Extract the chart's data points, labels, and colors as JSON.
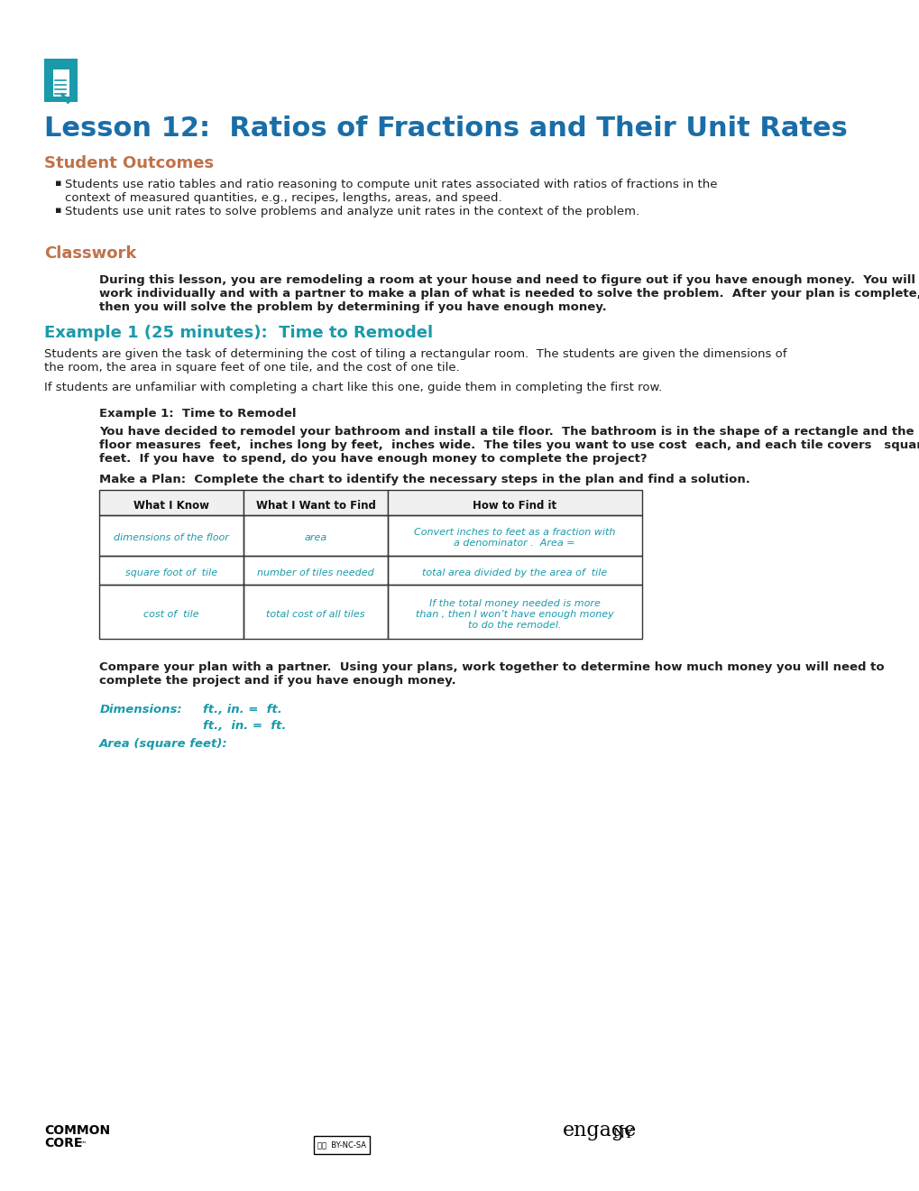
{
  "title": "Lesson 12:  Ratios of Fractions and Their Unit Rates",
  "title_color": "#1a6ea8",
  "title_fontsize": 22,
  "section1_heading": "Student Outcomes",
  "section1_color": "#c0724a",
  "section1_fontsize": 13,
  "bullet1": "Students use ratio tables and ratio reasoning to compute unit rates associated with ratios of fractions in the\ncontext of measured quantities, e.g., recipes, lengths, areas, and speed.",
  "bullet2": "Students use unit rates to solve problems and analyze unit rates in the context of the problem.",
  "section2_heading": "Classwork",
  "section2_color": "#c0724a",
  "section2_fontsize": 13,
  "classwork_para": "During this lesson, you are remodeling a room at your house and need to figure out if you have enough money.  You will\nwork individually and with a partner to make a plan of what is needed to solve the problem.  After your plan is complete,\nthen you will solve the problem by determining if you have enough money.",
  "section3_heading": "Example 1 (25 minutes):  Time to Remodel",
  "section3_color": "#1a9aaa",
  "section3_fontsize": 13,
  "example_para1": "Students are given the task of determining the cost of tiling a rectangular room.  The students are given the dimensions of\nthe room, the area in square feet of one tile, and the cost of one tile.",
  "example_para2": "If students are unfamiliar with completing a chart like this one, guide them in completing the first row.",
  "example1_label": "Example 1:  Time to Remodel",
  "problem_text": "You have decided to remodel your bathroom and install a tile floor.  The bathroom is in the shape of a rectangle and the\nfloor measures  feet,  inches long by feet,  inches wide.  The tiles you want to use cost  each, and each tile covers   square\nfeet.  If you have  to spend, do you have enough money to complete the project?",
  "make_plan_text": "Make a Plan:  Complete the chart to identify the necessary steps in the plan and find a solution.",
  "table_headers": [
    "What I Know",
    "What I Want to Find",
    "How to Find it"
  ],
  "table_row1": [
    "dimensions of the floor",
    "area",
    "Convert inches to feet as a fraction with\na denominator .  Area ="
  ],
  "table_row2": [
    "square foot of  tile",
    "number of tiles needed",
    "total area divided by the area of  tile"
  ],
  "table_row3": [
    "cost of  tile",
    "total cost of all tiles",
    "If the total money needed is more\nthan , then I won’t have enough money\nto do the remodel."
  ],
  "compare_text": "Compare your plan with a partner.  Using your plans, work together to determine how much money you will need to\ncomplete the project and if you have enough money.",
  "dimensions_label": "Dimensions:",
  "dim1": "ft., in. =  ft.",
  "dim2": "ft.,  in. =  ft.",
  "area_label": "Area (square feet):",
  "teal_color": "#1a9aaa",
  "bg_color": "#ffffff",
  "text_color": "#231f20",
  "body_fontsize": 9.5,
  "small_fontsize": 8.5
}
